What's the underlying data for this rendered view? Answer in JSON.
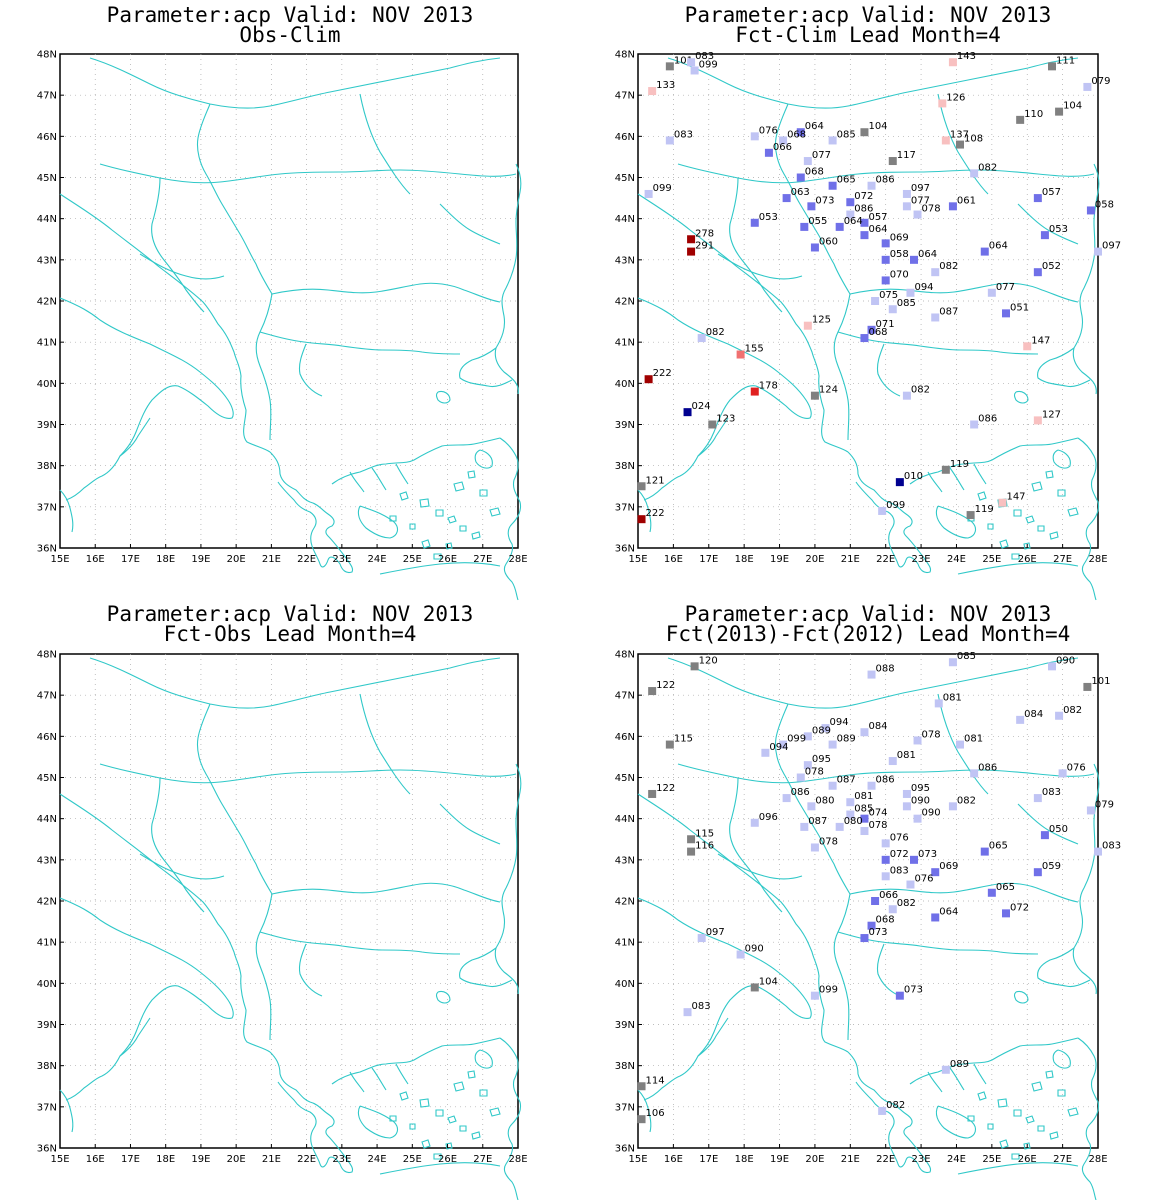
{
  "x_ticks": [
    "15E",
    "16E",
    "17E",
    "18E",
    "19E",
    "20E",
    "21E",
    "22E",
    "23E",
    "24E",
    "25E",
    "26E",
    "27E",
    "28E"
  ],
  "y_ticks": [
    "36N",
    "37N",
    "38N",
    "39N",
    "40N",
    "41N",
    "42N",
    "43N",
    "44N",
    "45N",
    "46N",
    "47N",
    "48N"
  ],
  "lon_range": [
    15,
    28
  ],
  "lat_range": [
    36,
    48
  ],
  "colors": {
    "coastline": "#30c8c8",
    "grid": "#a8a8a8",
    "neutral": "#808080",
    "light_blue": "#c0c4f4",
    "mid_blue": "#7070e8",
    "dark_blue": "#000090",
    "light_red": "#f8c0c0",
    "mid_red": "#f07070",
    "red": "#e02020",
    "dark_red": "#a00000"
  },
  "panels": [
    {
      "title": "Parameter:acp Valid: NOV 2013",
      "subtitle": "Obs-Clim",
      "stations": []
    },
    {
      "title": "Parameter:acp Valid: NOV 2013",
      "subtitle": "Fct-Clim Lead Month=4",
      "stations": [
        {
          "lon": 15.9,
          "lat": 47.7,
          "label": "101",
          "cls": "neutral"
        },
        {
          "lon": 16.5,
          "lat": 47.8,
          "label": "083",
          "cls": "light_blue"
        },
        {
          "lon": 16.6,
          "lat": 47.6,
          "label": "099",
          "cls": "light_blue"
        },
        {
          "lon": 15.4,
          "lat": 47.1,
          "label": "133",
          "cls": "light_red"
        },
        {
          "lon": 23.9,
          "lat": 47.8,
          "label": "143",
          "cls": "light_red"
        },
        {
          "lon": 26.7,
          "lat": 47.7,
          "label": "111",
          "cls": "neutral"
        },
        {
          "lon": 27.7,
          "lat": 47.2,
          "label": "079",
          "cls": "light_blue"
        },
        {
          "lon": 23.6,
          "lat": 46.8,
          "label": "126",
          "cls": "light_red"
        },
        {
          "lon": 26.9,
          "lat": 46.6,
          "label": "104",
          "cls": "neutral"
        },
        {
          "lon": 25.8,
          "lat": 46.4,
          "label": "110",
          "cls": "neutral"
        },
        {
          "lon": 15.9,
          "lat": 45.9,
          "label": "083",
          "cls": "light_blue"
        },
        {
          "lon": 18.3,
          "lat": 46.0,
          "label": "076",
          "cls": "light_blue"
        },
        {
          "lon": 19.6,
          "lat": 46.1,
          "label": "064",
          "cls": "mid_blue"
        },
        {
          "lon": 19.1,
          "lat": 45.9,
          "label": "068",
          "cls": "light_blue"
        },
        {
          "lon": 20.5,
          "lat": 45.9,
          "label": "085",
          "cls": "light_blue"
        },
        {
          "lon": 21.4,
          "lat": 46.1,
          "label": "104",
          "cls": "neutral"
        },
        {
          "lon": 23.7,
          "lat": 45.9,
          "label": "137",
          "cls": "light_red"
        },
        {
          "lon": 24.1,
          "lat": 45.8,
          "label": "108",
          "cls": "neutral"
        },
        {
          "lon": 18.7,
          "lat": 45.6,
          "label": "066",
          "cls": "mid_blue"
        },
        {
          "lon": 19.8,
          "lat": 45.4,
          "label": "077",
          "cls": "light_blue"
        },
        {
          "lon": 22.2,
          "lat": 45.4,
          "label": "117",
          "cls": "neutral"
        },
        {
          "lon": 24.5,
          "lat": 45.1,
          "label": "082",
          "cls": "light_blue"
        },
        {
          "lon": 19.6,
          "lat": 45.0,
          "label": "068",
          "cls": "mid_blue"
        },
        {
          "lon": 20.5,
          "lat": 44.8,
          "label": "065",
          "cls": "mid_blue"
        },
        {
          "lon": 21.6,
          "lat": 44.8,
          "label": "086",
          "cls": "light_blue"
        },
        {
          "lon": 22.6,
          "lat": 44.6,
          "label": "097",
          "cls": "light_blue"
        },
        {
          "lon": 19.2,
          "lat": 44.5,
          "label": "063",
          "cls": "mid_blue"
        },
        {
          "lon": 21.0,
          "lat": 44.4,
          "label": "072",
          "cls": "mid_blue"
        },
        {
          "lon": 19.9,
          "lat": 44.3,
          "label": "073",
          "cls": "mid_blue"
        },
        {
          "lon": 22.6,
          "lat": 44.3,
          "label": "077",
          "cls": "light_blue"
        },
        {
          "lon": 23.9,
          "lat": 44.3,
          "label": "061",
          "cls": "mid_blue"
        },
        {
          "lon": 26.3,
          "lat": 44.5,
          "label": "057",
          "cls": "mid_blue"
        },
        {
          "lon": 27.8,
          "lat": 44.2,
          "label": "058",
          "cls": "mid_blue"
        },
        {
          "lon": 15.3,
          "lat": 44.6,
          "label": "099",
          "cls": "light_blue"
        },
        {
          "lon": 21.0,
          "lat": 44.1,
          "label": "086",
          "cls": "light_blue"
        },
        {
          "lon": 22.9,
          "lat": 44.1,
          "label": "078",
          "cls": "light_blue"
        },
        {
          "lon": 21.4,
          "lat": 43.9,
          "label": "057",
          "cls": "mid_blue"
        },
        {
          "lon": 18.3,
          "lat": 43.9,
          "label": "053",
          "cls": "mid_blue"
        },
        {
          "lon": 19.7,
          "lat": 43.8,
          "label": "055",
          "cls": "mid_blue"
        },
        {
          "lon": 20.7,
          "lat": 43.8,
          "label": "064",
          "cls": "mid_blue"
        },
        {
          "lon": 21.4,
          "lat": 43.6,
          "label": "064",
          "cls": "mid_blue"
        },
        {
          "lon": 26.5,
          "lat": 43.6,
          "label": "053",
          "cls": "mid_blue"
        },
        {
          "lon": 16.5,
          "lat": 43.5,
          "label": "278",
          "cls": "dark_red"
        },
        {
          "lon": 16.5,
          "lat": 43.2,
          "label": "291",
          "cls": "dark_red"
        },
        {
          "lon": 20.0,
          "lat": 43.3,
          "label": "060",
          "cls": "mid_blue"
        },
        {
          "lon": 22.0,
          "lat": 43.4,
          "label": "069",
          "cls": "mid_blue"
        },
        {
          "lon": 24.8,
          "lat": 43.2,
          "label": "064",
          "cls": "mid_blue"
        },
        {
          "lon": 28.0,
          "lat": 43.2,
          "label": "097",
          "cls": "light_blue"
        },
        {
          "lon": 22.0,
          "lat": 43.0,
          "label": "058",
          "cls": "mid_blue"
        },
        {
          "lon": 22.8,
          "lat": 43.0,
          "label": "064",
          "cls": "mid_blue"
        },
        {
          "lon": 23.4,
          "lat": 42.7,
          "label": "082",
          "cls": "light_blue"
        },
        {
          "lon": 26.3,
          "lat": 42.7,
          "label": "052",
          "cls": "mid_blue"
        },
        {
          "lon": 22.0,
          "lat": 42.5,
          "label": "070",
          "cls": "mid_blue"
        },
        {
          "lon": 22.7,
          "lat": 42.2,
          "label": "094",
          "cls": "light_blue"
        },
        {
          "lon": 25.0,
          "lat": 42.2,
          "label": "077",
          "cls": "light_blue"
        },
        {
          "lon": 21.7,
          "lat": 42.0,
          "label": "075",
          "cls": "light_blue"
        },
        {
          "lon": 22.2,
          "lat": 41.8,
          "label": "085",
          "cls": "light_blue"
        },
        {
          "lon": 23.4,
          "lat": 41.6,
          "label": "087",
          "cls": "light_blue"
        },
        {
          "lon": 25.4,
          "lat": 41.7,
          "label": "051",
          "cls": "mid_blue"
        },
        {
          "lon": 19.8,
          "lat": 41.4,
          "label": "125",
          "cls": "light_red"
        },
        {
          "lon": 21.6,
          "lat": 41.3,
          "label": "071",
          "cls": "mid_blue"
        },
        {
          "lon": 16.8,
          "lat": 41.1,
          "label": "082",
          "cls": "light_blue"
        },
        {
          "lon": 21.4,
          "lat": 41.1,
          "label": "068",
          "cls": "mid_blue"
        },
        {
          "lon": 26.0,
          "lat": 40.9,
          "label": "147",
          "cls": "light_red"
        },
        {
          "lon": 17.9,
          "lat": 40.7,
          "label": "155",
          "cls": "mid_red"
        },
        {
          "lon": 15.3,
          "lat": 40.1,
          "label": "222",
          "cls": "dark_red"
        },
        {
          "lon": 18.3,
          "lat": 39.8,
          "label": "178",
          "cls": "red"
        },
        {
          "lon": 20.0,
          "lat": 39.7,
          "label": "124",
          "cls": "neutral"
        },
        {
          "lon": 22.6,
          "lat": 39.7,
          "label": "082",
          "cls": "light_blue"
        },
        {
          "lon": 16.4,
          "lat": 39.3,
          "label": "024",
          "cls": "dark_blue"
        },
        {
          "lon": 17.1,
          "lat": 39.0,
          "label": "123",
          "cls": "neutral"
        },
        {
          "lon": 24.5,
          "lat": 39.0,
          "label": "086",
          "cls": "light_blue"
        },
        {
          "lon": 26.3,
          "lat": 39.1,
          "label": "127",
          "cls": "light_red"
        },
        {
          "lon": 23.7,
          "lat": 37.9,
          "label": "119",
          "cls": "neutral"
        },
        {
          "lon": 15.1,
          "lat": 37.5,
          "label": "121",
          "cls": "neutral"
        },
        {
          "lon": 22.4,
          "lat": 37.6,
          "label": "010",
          "cls": "dark_blue"
        },
        {
          "lon": 25.3,
          "lat": 37.1,
          "label": "147",
          "cls": "light_red"
        },
        {
          "lon": 21.9,
          "lat": 36.9,
          "label": "099",
          "cls": "light_blue"
        },
        {
          "lon": 24.4,
          "lat": 36.8,
          "label": "119",
          "cls": "neutral"
        },
        {
          "lon": 15.1,
          "lat": 36.7,
          "label": "222",
          "cls": "dark_red"
        }
      ]
    },
    {
      "title": "Parameter:acp Valid: NOV 2013",
      "subtitle": "Fct-Obs Lead Month=4",
      "stations": []
    },
    {
      "title": "Parameter:acp Valid: NOV 2013",
      "subtitle": "Fct(2013)-Fct(2012) Lead Month=4",
      "stations": [
        {
          "lon": 16.6,
          "lat": 47.7,
          "label": "120",
          "cls": "neutral"
        },
        {
          "lon": 21.6,
          "lat": 47.5,
          "label": "088",
          "cls": "light_blue"
        },
        {
          "lon": 23.9,
          "lat": 47.8,
          "label": "085",
          "cls": "light_blue"
        },
        {
          "lon": 26.7,
          "lat": 47.7,
          "label": "090",
          "cls": "light_blue"
        },
        {
          "lon": 15.4,
          "lat": 47.1,
          "label": "122",
          "cls": "neutral"
        },
        {
          "lon": 27.7,
          "lat": 47.2,
          "label": "101",
          "cls": "neutral"
        },
        {
          "lon": 23.5,
          "lat": 46.8,
          "label": "081",
          "cls": "light_blue"
        },
        {
          "lon": 26.9,
          "lat": 46.5,
          "label": "082",
          "cls": "light_blue"
        },
        {
          "lon": 25.8,
          "lat": 46.4,
          "label": "084",
          "cls": "light_blue"
        },
        {
          "lon": 20.3,
          "lat": 46.2,
          "label": "094",
          "cls": "light_blue"
        },
        {
          "lon": 19.8,
          "lat": 46.0,
          "label": "089",
          "cls": "light_blue"
        },
        {
          "lon": 21.4,
          "lat": 46.1,
          "label": "084",
          "cls": "light_blue"
        },
        {
          "lon": 15.9,
          "lat": 45.8,
          "label": "115",
          "cls": "neutral"
        },
        {
          "lon": 19.1,
          "lat": 45.8,
          "label": "099",
          "cls": "light_blue"
        },
        {
          "lon": 20.5,
          "lat": 45.8,
          "label": "089",
          "cls": "light_blue"
        },
        {
          "lon": 22.9,
          "lat": 45.9,
          "label": "078",
          "cls": "light_blue"
        },
        {
          "lon": 24.1,
          "lat": 45.8,
          "label": "081",
          "cls": "light_blue"
        },
        {
          "lon": 18.6,
          "lat": 45.6,
          "label": "094",
          "cls": "light_blue"
        },
        {
          "lon": 22.2,
          "lat": 45.4,
          "label": "081",
          "cls": "light_blue"
        },
        {
          "lon": 19.8,
          "lat": 45.3,
          "label": "095",
          "cls": "light_blue"
        },
        {
          "lon": 24.5,
          "lat": 45.1,
          "label": "086",
          "cls": "light_blue"
        },
        {
          "lon": 27.0,
          "lat": 45.1,
          "label": "076",
          "cls": "light_blue"
        },
        {
          "lon": 19.6,
          "lat": 45.0,
          "label": "078",
          "cls": "light_blue"
        },
        {
          "lon": 20.5,
          "lat": 44.8,
          "label": "087",
          "cls": "light_blue"
        },
        {
          "lon": 21.6,
          "lat": 44.8,
          "label": "086",
          "cls": "light_blue"
        },
        {
          "lon": 22.6,
          "lat": 44.6,
          "label": "095",
          "cls": "light_blue"
        },
        {
          "lon": 15.4,
          "lat": 44.6,
          "label": "122",
          "cls": "neutral"
        },
        {
          "lon": 19.2,
          "lat": 44.5,
          "label": "086",
          "cls": "light_blue"
        },
        {
          "lon": 26.3,
          "lat": 44.5,
          "label": "083",
          "cls": "light_blue"
        },
        {
          "lon": 21.0,
          "lat": 44.4,
          "label": "081",
          "cls": "light_blue"
        },
        {
          "lon": 19.9,
          "lat": 44.3,
          "label": "080",
          "cls": "light_blue"
        },
        {
          "lon": 22.6,
          "lat": 44.3,
          "label": "090",
          "cls": "light_blue"
        },
        {
          "lon": 23.9,
          "lat": 44.3,
          "label": "082",
          "cls": "light_blue"
        },
        {
          "lon": 27.8,
          "lat": 44.2,
          "label": "079",
          "cls": "light_blue"
        },
        {
          "lon": 21.0,
          "lat": 44.1,
          "label": "085",
          "cls": "light_blue"
        },
        {
          "lon": 22.9,
          "lat": 44.0,
          "label": "090",
          "cls": "light_blue"
        },
        {
          "lon": 21.4,
          "lat": 44.0,
          "label": "074",
          "cls": "mid_blue"
        },
        {
          "lon": 18.3,
          "lat": 43.9,
          "label": "096",
          "cls": "light_blue"
        },
        {
          "lon": 19.7,
          "lat": 43.8,
          "label": "087",
          "cls": "light_blue"
        },
        {
          "lon": 20.7,
          "lat": 43.8,
          "label": "080",
          "cls": "light_blue"
        },
        {
          "lon": 21.4,
          "lat": 43.7,
          "label": "078",
          "cls": "light_blue"
        },
        {
          "lon": 26.5,
          "lat": 43.6,
          "label": "050",
          "cls": "mid_blue"
        },
        {
          "lon": 16.5,
          "lat": 43.5,
          "label": "115",
          "cls": "neutral"
        },
        {
          "lon": 20.0,
          "lat": 43.3,
          "label": "078",
          "cls": "light_blue"
        },
        {
          "lon": 22.0,
          "lat": 43.4,
          "label": "076",
          "cls": "light_blue"
        },
        {
          "lon": 16.5,
          "lat": 43.2,
          "label": "116",
          "cls": "neutral"
        },
        {
          "lon": 28.0,
          "lat": 43.2,
          "label": "083",
          "cls": "light_blue"
        },
        {
          "lon": 24.8,
          "lat": 43.2,
          "label": "065",
          "cls": "mid_blue"
        },
        {
          "lon": 22.0,
          "lat": 43.0,
          "label": "072",
          "cls": "mid_blue"
        },
        {
          "lon": 22.8,
          "lat": 43.0,
          "label": "073",
          "cls": "mid_blue"
        },
        {
          "lon": 23.4,
          "lat": 42.7,
          "label": "069",
          "cls": "mid_blue"
        },
        {
          "lon": 26.3,
          "lat": 42.7,
          "label": "059",
          "cls": "mid_blue"
        },
        {
          "lon": 22.0,
          "lat": 42.6,
          "label": "083",
          "cls": "light_blue"
        },
        {
          "lon": 22.7,
          "lat": 42.4,
          "label": "076",
          "cls": "light_blue"
        },
        {
          "lon": 25.0,
          "lat": 42.2,
          "label": "065",
          "cls": "mid_blue"
        },
        {
          "lon": 21.7,
          "lat": 42.0,
          "label": "066",
          "cls": "mid_blue"
        },
        {
          "lon": 22.2,
          "lat": 41.8,
          "label": "082",
          "cls": "light_blue"
        },
        {
          "lon": 23.4,
          "lat": 41.6,
          "label": "064",
          "cls": "mid_blue"
        },
        {
          "lon": 25.4,
          "lat": 41.7,
          "label": "072",
          "cls": "mid_blue"
        },
        {
          "lon": 21.6,
          "lat": 41.4,
          "label": "068",
          "cls": "mid_blue"
        },
        {
          "lon": 21.4,
          "lat": 41.1,
          "label": "073",
          "cls": "mid_blue"
        },
        {
          "lon": 16.8,
          "lat": 41.1,
          "label": "097",
          "cls": "light_blue"
        },
        {
          "lon": 17.9,
          "lat": 40.7,
          "label": "090",
          "cls": "light_blue"
        },
        {
          "lon": 18.3,
          "lat": 39.9,
          "label": "104",
          "cls": "neutral"
        },
        {
          "lon": 20.0,
          "lat": 39.7,
          "label": "099",
          "cls": "light_blue"
        },
        {
          "lon": 22.4,
          "lat": 39.7,
          "label": "073",
          "cls": "mid_blue"
        },
        {
          "lon": 16.4,
          "lat": 39.3,
          "label": "083",
          "cls": "light_blue"
        },
        {
          "lon": 23.7,
          "lat": 37.9,
          "label": "089",
          "cls": "light_blue"
        },
        {
          "lon": 15.1,
          "lat": 37.5,
          "label": "114",
          "cls": "neutral"
        },
        {
          "lon": 21.9,
          "lat": 36.9,
          "label": "082",
          "cls": "light_blue"
        },
        {
          "lon": 15.1,
          "lat": 36.7,
          "label": "106",
          "cls": "neutral"
        }
      ]
    }
  ]
}
